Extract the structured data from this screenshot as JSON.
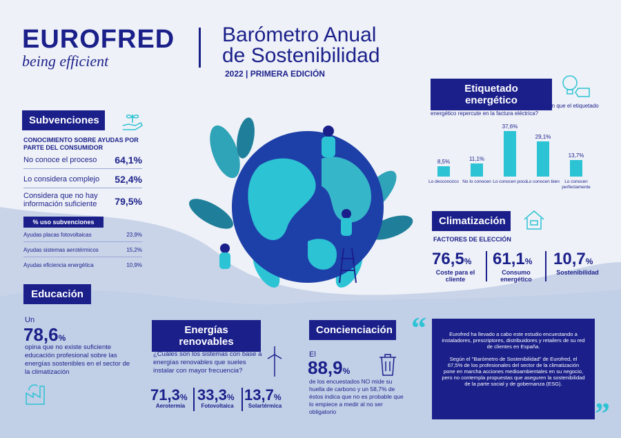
{
  "brand": {
    "logo": "EUROFRED",
    "tagline": "being efficient"
  },
  "header": {
    "title_line1": "Barómetro Anual",
    "title_line2": "de Sostenibilidad",
    "edition": "2022  |  PRIMERA EDICIÓN"
  },
  "subvenciones": {
    "title": "Subvenciones",
    "subtitle": "CONOCIMIENTO SOBRE AYUDAS POR PARTE DEL CONSUMIDOR",
    "rows": [
      {
        "label": "No conoce el proceso",
        "value": "64,1%"
      },
      {
        "label": "Lo considera complejo",
        "value": "52,4%"
      },
      {
        "label": "Considera que no hay información suficiente",
        "value": "79,5%"
      }
    ],
    "uso_title": "% uso subvenciones",
    "uso_rows": [
      {
        "label": "Ayudas placas fotovoltaicas",
        "value": "23,9%"
      },
      {
        "label": "Ayudas sistemas aerotérmicos",
        "value": "15,2%"
      },
      {
        "label": "Ayudas eficiencia energética",
        "value": "10,9%"
      }
    ]
  },
  "etiquetado": {
    "title": "Etiquetado energético",
    "question": "En general, ¿crees que los consumidores conocen que el etiquetado energético repercute en la factura eléctrica?",
    "chart_data": {
      "type": "bar",
      "categories": [
        "Lo desconozco",
        "No lo conocen",
        "Lo conocen poco",
        "Lo conocen bien",
        "Lo conocen perfectamente"
      ],
      "values": [
        8.5,
        11.1,
        37.6,
        29.1,
        13.7
      ],
      "value_labels": [
        "8,5%",
        "11,1%",
        "37,6%",
        "29,1%",
        "13,7%"
      ]
    }
  },
  "climatizacion": {
    "title": "Climatización",
    "subtitle": "FACTORES DE ELECCIÓN",
    "items": [
      {
        "value": "76,5",
        "unit": "%",
        "label": "Coste para el cliente"
      },
      {
        "value": "61,1",
        "unit": "%",
        "label": "Consumo energético"
      },
      {
        "value": "10,7",
        "unit": "%",
        "label": "Sostenibilidad"
      }
    ]
  },
  "educacion": {
    "title": "Educación",
    "pre": "Un",
    "value": "78,6",
    "unit": "%",
    "text": "opina que no existe suficiente educación profesional sobre las energías sostenibles en el sector de la climatización"
  },
  "renovables": {
    "title": "Energías renovables",
    "question": "¿Cuáles son los sistemas con base a energías renovables que sueles instalar con mayor frecuencia?",
    "items": [
      {
        "value": "71,3",
        "unit": "%",
        "label": "Aerotermia"
      },
      {
        "value": "33,3",
        "unit": "%",
        "label": "Fotovoltaica"
      },
      {
        "value": "13,7",
        "unit": "%",
        "label": "Solartérmica"
      }
    ]
  },
  "concienciacion": {
    "title": "Concienciación",
    "pre": "El",
    "value": "88,9",
    "unit": "%",
    "text": "de los encuestados NO mide su huella de carbono  y un 58,7% de éstos indica que no es probable que lo empiece a medir al no ser obligatorio"
  },
  "quote": {
    "p1": "Eurofred ha llevado a cabo este estudio encuestando a instaladores, prescriptores, distribuidores y retailers de su red de clientes en España.",
    "p2": "Según el \"Barómetro de Sostenibilidad\" de Eurofred, el 67,5% de los profesionales del sector de la climatización pone en marcha acciones medioambientales en su negocio, pero no contempla propuestas que aseguren la sostenibilidad de la parte social y de gobernanza (ESG).",
    "open": "“",
    "close": "”"
  },
  "colors": {
    "navy": "#1a1f8a",
    "accent": "#2cc3d4",
    "background": "#eef1f7",
    "wave": "#c9d4e9"
  }
}
